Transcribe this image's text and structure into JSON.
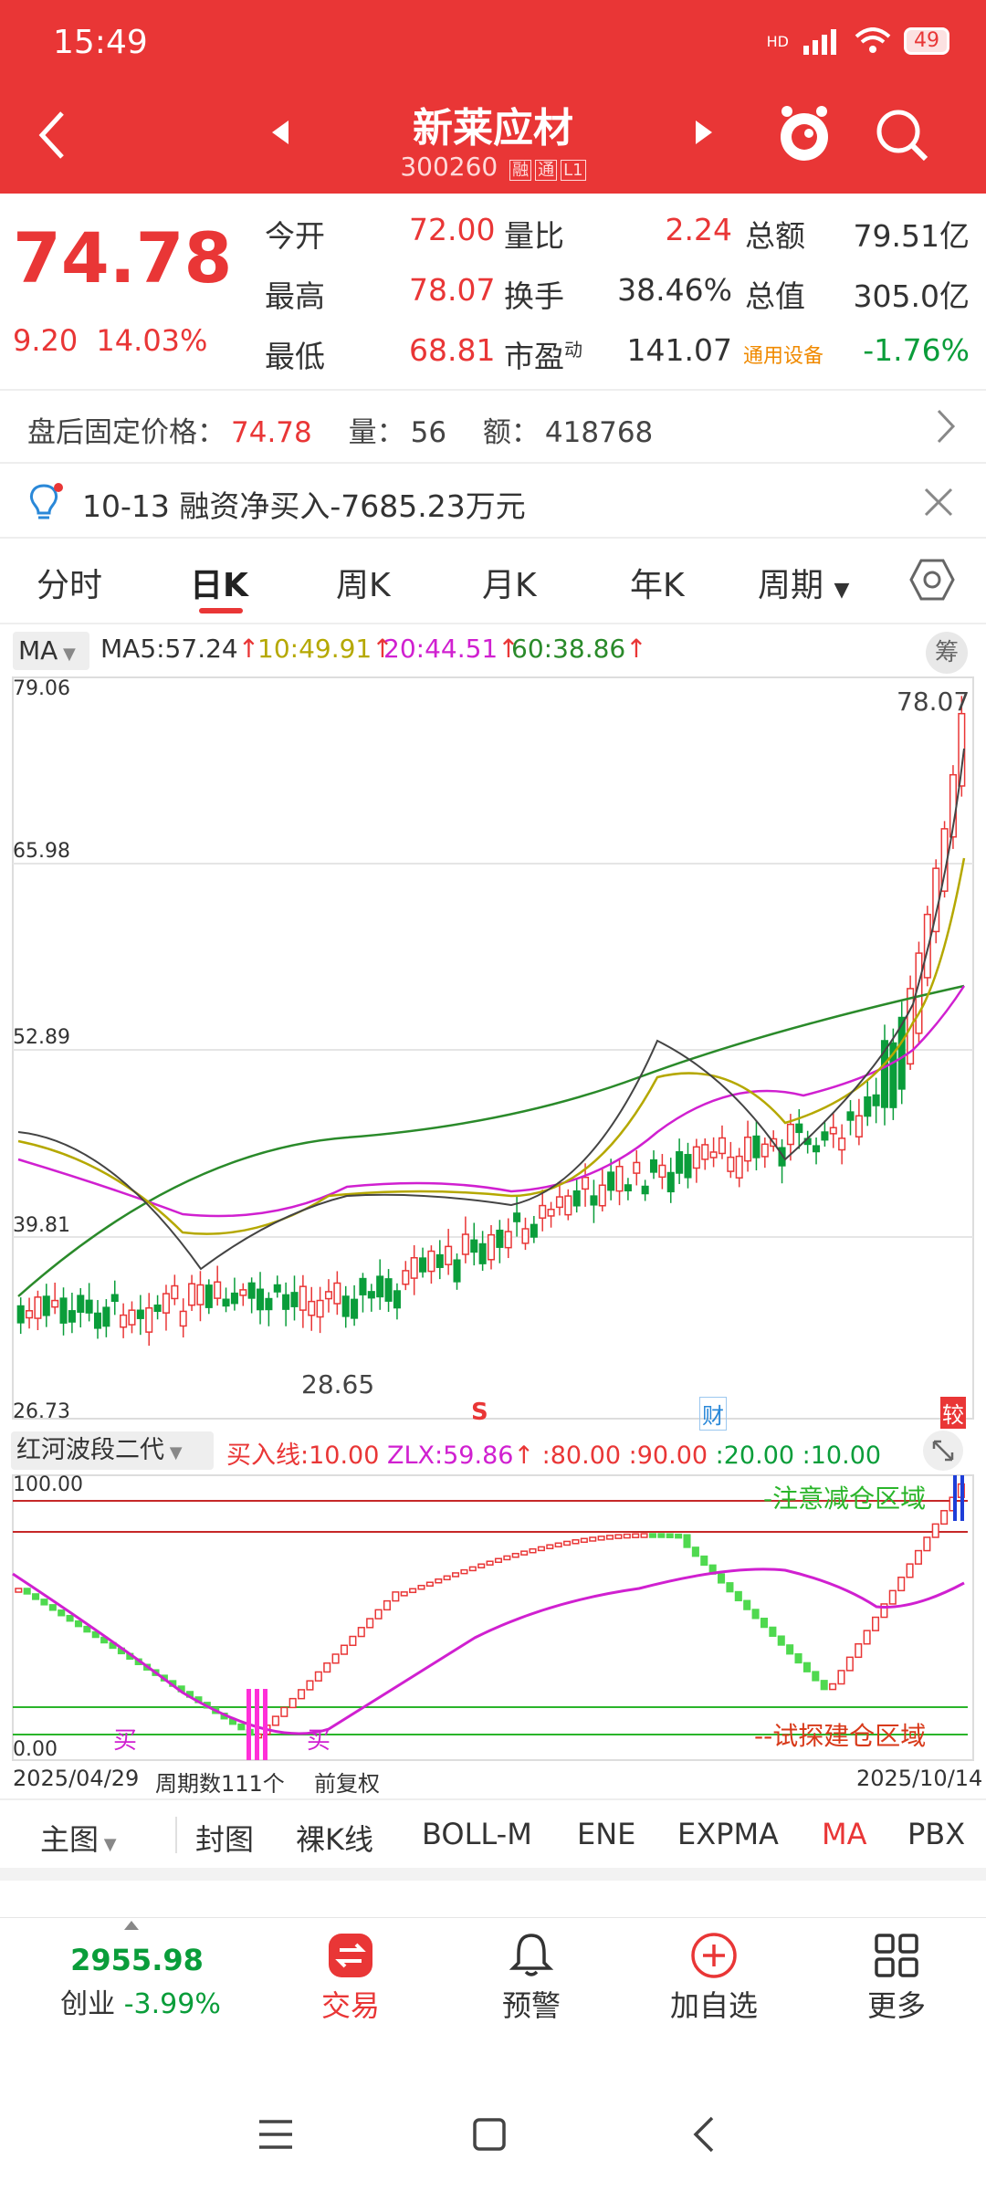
{
  "status_bar": {
    "time": "15:49",
    "signal": "HD",
    "battery": "49"
  },
  "header": {
    "title": "新莱应材",
    "code": "300260",
    "tag1": "融",
    "tag2": "通",
    "tag3": "L1"
  },
  "quote": {
    "price": "74.78",
    "change": "9.20",
    "change_pct": "14.03%",
    "rows": [
      {
        "l1": "今开",
        "v1": "72.00",
        "l2": "量比",
        "v2": "2.24",
        "l3": "总额",
        "v3": "79.51亿"
      },
      {
        "l1": "最高",
        "v1": "78.07",
        "l2": "换手",
        "v2": "38.46%",
        "l3": "总值",
        "v3": "305.0亿"
      },
      {
        "l1": "最低",
        "v1": "68.81",
        "l2": "市盈",
        "l2sup": "动",
        "v2": "141.07",
        "l3": "通用设备",
        "v3": "-1.76%"
      }
    ]
  },
  "after_hours": {
    "price_label": "盘后固定价格：",
    "price": "74.78",
    "vol_label": "量：",
    "vol": "56",
    "amt_label": "额：",
    "amt": "418768"
  },
  "notice": {
    "text": "10-13 融资净买入-7685.23万元"
  },
  "tabs": [
    "分时",
    "日K",
    "周K",
    "月K",
    "年K",
    "周期"
  ],
  "ma_legend": {
    "label": "MA",
    "ma5": "MA5:57.24",
    "ma10": "10:49.91",
    "ma20": "20:44.51",
    "ma60": "60:38.86",
    "chip": "筹"
  },
  "main_chart": {
    "y_labels": [
      "79.06",
      "65.98",
      "52.89",
      "39.81",
      "26.73"
    ],
    "high_label": "78.07",
    "low_label": "28.65",
    "mark_s": "S",
    "mark_cai": "财",
    "mark_jiao": "较"
  },
  "indicator": {
    "name": "红河波段二代",
    "buy_line": "买入线:10.00",
    "zlx": "ZLX:59.86",
    "l80": ":80.00",
    "l90": ":90.00",
    "l20": ":20.00",
    "l10": ":10.00",
    "y_top": "100.00",
    "y_bottom": "0.00",
    "warn_zone": "-注意减仓区域",
    "build_zone": "--试探建仓区域",
    "buy_mark1": "买",
    "buy_mark2": "买"
  },
  "date_axis": {
    "start": "2025/04/29",
    "period": "周期数111个",
    "adj": "前复权",
    "end": "2025/10/14"
  },
  "indicator_tabs": [
    "主图",
    "封图",
    "裸K线",
    "BOLL-M",
    "ENE",
    "EXPMA",
    "MA",
    "PBX"
  ],
  "bottom_nav": {
    "index_value": "2955.98",
    "index_name": "创业",
    "index_pct": "-3.99%",
    "trade": "交易",
    "alert": "预警",
    "add": "加自选",
    "more": "更多"
  },
  "colors": {
    "header_red": "#e93636",
    "up": "#e93636",
    "down": "#0a9d3a",
    "ma5": "#333333",
    "ma10": "#b5a800",
    "ma20": "#d020d0",
    "ma60": "#2a8a2a"
  }
}
